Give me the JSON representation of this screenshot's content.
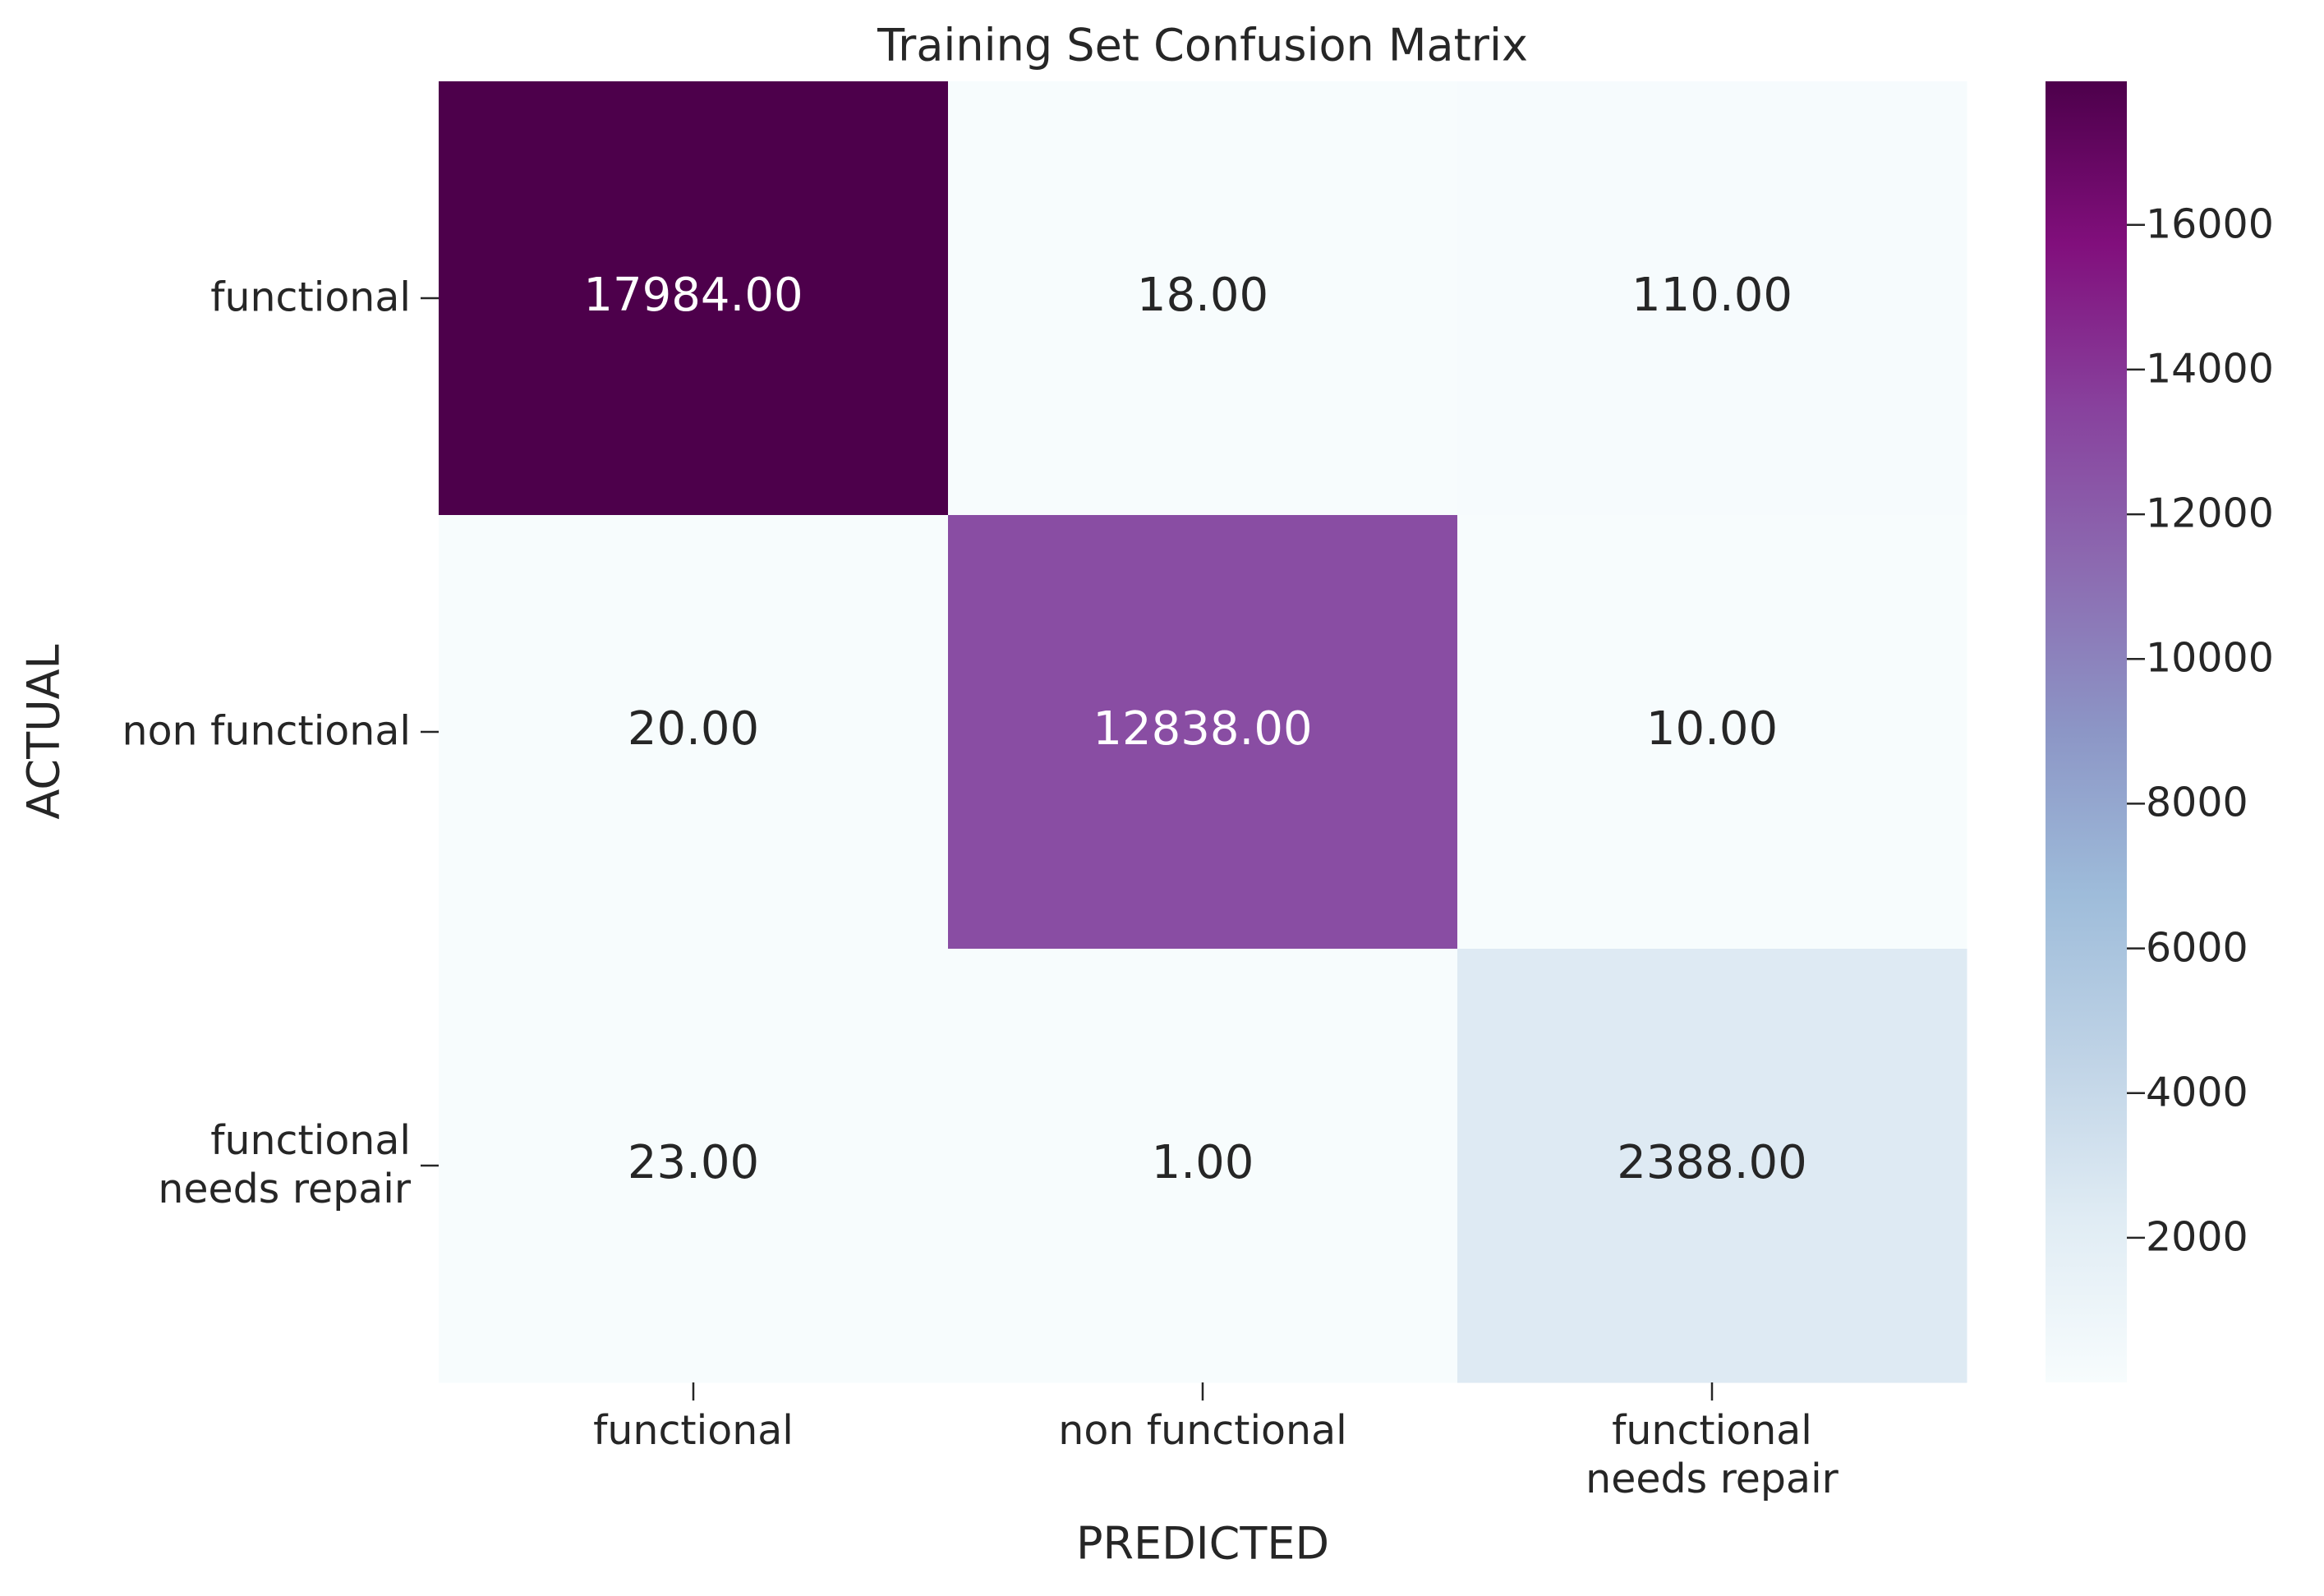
{
  "chart_data": {
    "type": "heatmap",
    "title": "Training Set Confusion Matrix",
    "xlabel": "PREDICTED",
    "ylabel": "ACTUAL",
    "x_categories": [
      "functional",
      "non functional",
      "functional\nneeds repair"
    ],
    "y_categories": [
      "functional",
      "non functional",
      "functional\nneeds repair"
    ],
    "values": [
      [
        17984,
        18,
        110
      ],
      [
        20,
        12838,
        10
      ],
      [
        23,
        1,
        2388
      ]
    ],
    "value_labels": [
      [
        "17984.00",
        "18.00",
        "110.00"
      ],
      [
        "20.00",
        "12838.00",
        "10.00"
      ],
      [
        "23.00",
        "1.00",
        "2388.00"
      ]
    ],
    "colormap": [
      "#f7fcfd",
      "#e0ecf4",
      "#bfd3e6",
      "#9ebcda",
      "#8c96c6",
      "#8c6bb1",
      "#88419d",
      "#810f7c",
      "#4d004b"
    ],
    "clim": [
      1,
      17984
    ],
    "colorbar_ticks": [
      2000,
      4000,
      6000,
      8000,
      10000,
      12000,
      14000,
      16000
    ]
  }
}
